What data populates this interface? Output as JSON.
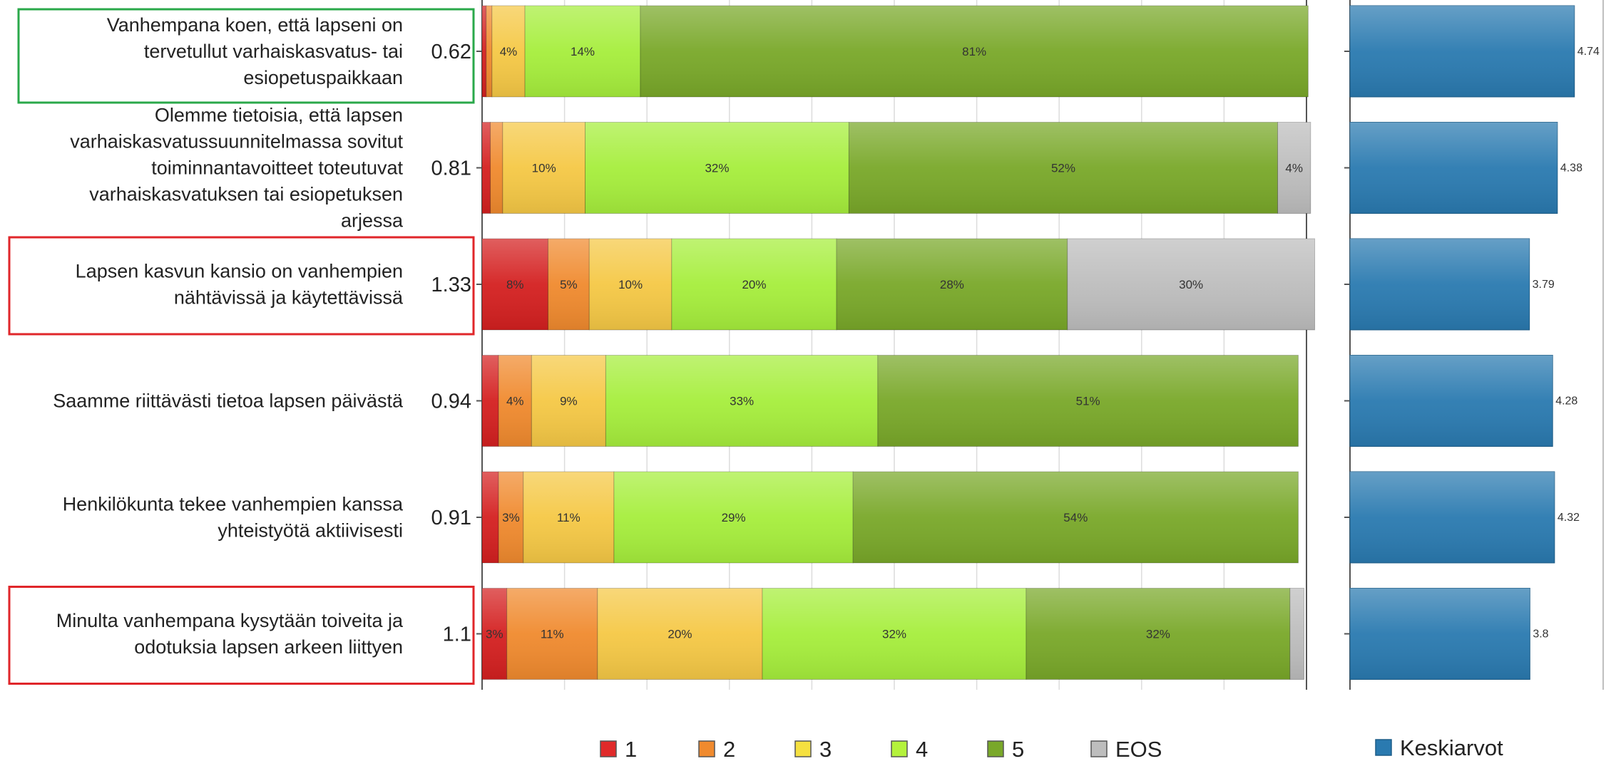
{
  "chart_data": {
    "type": "bar",
    "subtype": "stacked-horizontal-percent",
    "title": "",
    "xlabel": "",
    "ylabel": "",
    "xlim": [
      0,
      100
    ],
    "grid": true,
    "legend_position": "bottom",
    "categories": [
      "Vanhempana koen, että lapseni on tervetullut varhaiskasvatus- tai esiopetuspaikkaan",
      "Olemme tietoisia, että lapsen varhaiskasvatussuunnitelmassa sovitut toiminnantavoitteet toteutuvat varhaiskasvatuksen tai esiopetuksen arjessa",
      "Lapsen kasvun kansio on vanhempien nähtävissä ja käytettävissä",
      "Saamme riittävästi tietoa lapsen päivästä",
      "Henkilökunta tekee vanhempien kanssa yhteistyötä aktiivisesti",
      "Minulta vanhempana kysytään toiveita ja odotuksia lapsen arkeen liittyen"
    ],
    "category_lines": [
      [
        "Vanhempana koen, että lapseni on",
        "tervetullut varhaiskasvatus- tai",
        "esiopetuspaikkaan"
      ],
      [
        "Olemme tietoisia, että lapsen",
        "varhaiskasvatussuunnitelmassa sovitut",
        "toiminnantavoitteet toteutuvat",
        "varhaiskasvatuksen tai esiopetuksen",
        "arjessa"
      ],
      [
        "Lapsen kasvun kansio on vanhempien",
        "nähtävissä ja käytettävissä"
      ],
      [
        "Saamme riittävästi tietoa lapsen päivästä"
      ],
      [
        "Henkilökunta tekee vanhempien kanssa",
        "yhteistyötä aktiivisesti"
      ],
      [
        "Minulta vanhempana kysytään toiveita ja",
        "odotuksia lapsen arkeen liittyen"
      ]
    ],
    "std_dev": [
      "0.62",
      "0.81",
      "1.33",
      "0.94",
      "0.91",
      "1.1"
    ],
    "highlight": [
      "green",
      "none",
      "red",
      "none",
      "none",
      "red"
    ],
    "series": [
      {
        "name": "1",
        "color": "#d42020",
        "values": [
          0.5,
          1,
          8,
          2,
          2,
          3
        ]
      },
      {
        "name": "2",
        "color": "#f08a2e",
        "values": [
          0.7,
          1.5,
          5,
          4,
          3,
          11
        ]
      },
      {
        "name": "3",
        "color": "#f5c845",
        "values": [
          4,
          10,
          10,
          9,
          11,
          20
        ]
      },
      {
        "name": "4",
        "color": "#a6ee3c",
        "values": [
          14,
          32,
          20,
          33,
          29,
          32
        ]
      },
      {
        "name": "5",
        "color": "#79a829",
        "values": [
          81,
          52,
          28,
          51,
          54,
          32
        ]
      },
      {
        "name": "EOS",
        "color": "#bdbdbd",
        "values": [
          0,
          4,
          30,
          0,
          0,
          1.7
        ]
      }
    ],
    "segment_labels": [
      [
        "",
        "",
        "4%",
        "14%",
        "81%",
        ""
      ],
      [
        "",
        "",
        "10%",
        "32%",
        "52%",
        "4%"
      ],
      [
        "8%",
        "5%",
        "10%",
        "20%",
        "28%",
        "30%"
      ],
      [
        "",
        "4%",
        "9%",
        "33%",
        "51%",
        ""
      ],
      [
        "",
        "3%",
        "11%",
        "29%",
        "54%",
        ""
      ],
      [
        "3%",
        "11%",
        "20%",
        "32%",
        "32%",
        ""
      ]
    ],
    "mean_series": {
      "name": "Keskiarvot",
      "color": "#2a7ab0",
      "values": [
        4.74,
        4.38,
        3.79,
        4.28,
        4.32,
        3.8
      ],
      "labels": [
        "4.74",
        "4.38",
        "3.79",
        "4.28",
        "4.32",
        "3.8"
      ],
      "xlim": [
        0,
        5
      ]
    }
  },
  "legend": {
    "items": [
      {
        "label": "1",
        "color": "#e02a2a"
      },
      {
        "label": "2",
        "color": "#f08a2e"
      },
      {
        "label": "3",
        "color": "#f5e040"
      },
      {
        "label": "4",
        "color": "#b4f23c"
      },
      {
        "label": "5",
        "color": "#79a829"
      },
      {
        "label": "EOS",
        "color": "#bdbdbd"
      }
    ],
    "mean_label": "Keskiarvot",
    "mean_color": "#2a7ab0"
  }
}
